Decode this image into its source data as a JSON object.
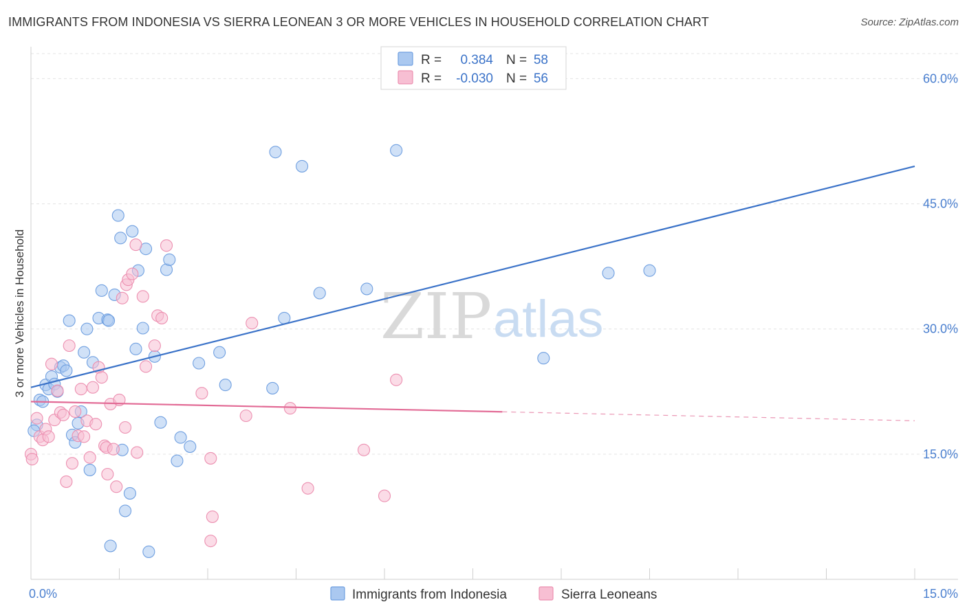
{
  "header": {
    "title": "IMMIGRANTS FROM INDONESIA VS SIERRA LEONEAN 3 OR MORE VEHICLES IN HOUSEHOLD CORRELATION CHART",
    "source": "Source: ZipAtlas.com"
  },
  "watermark": {
    "zip": "ZIP",
    "atlas": "atlas"
  },
  "stats": [
    {
      "r_label": "R =",
      "r_value": "0.384",
      "n_label": "N =",
      "n_value": "58",
      "color": "#aac8f0",
      "stroke": "#6f9fe0"
    },
    {
      "r_label": "R =",
      "r_value": "-0.030",
      "n_label": "N =",
      "n_value": "56",
      "color": "#f7bfd3",
      "stroke": "#ec8fb0"
    }
  ],
  "chart_data": {
    "type": "scatter",
    "title": "IMMIGRANTS FROM INDONESIA VS SIERRA LEONEAN 3 OR MORE VEHICLES IN HOUSEHOLD CORRELATION CHART",
    "xlabel": "",
    "ylabel": "3 or more Vehicles in Household",
    "xlim": [
      0,
      15
    ],
    "ylim": [
      0,
      63
    ],
    "x_tick_labels": [
      "0.0%",
      "15.0%"
    ],
    "y_ticks": [
      15,
      30,
      45,
      60
    ],
    "y_tick_labels": [
      "15.0%",
      "30.0%",
      "45.0%",
      "60.0%"
    ],
    "grid": true,
    "legend_position": "bottom-center",
    "series": [
      {
        "name": "Immigrants from Indonesia",
        "color": "#aac8f0",
        "stroke": "#6f9fe0",
        "trend": {
          "x": [
            0,
            15
          ],
          "y": [
            23.0,
            49.5
          ],
          "color": "#3a72c8",
          "dashed_from": null
        },
        "points": [
          [
            0.1,
            18.5
          ],
          [
            0.15,
            21.5
          ],
          [
            0.2,
            21.3
          ],
          [
            0.25,
            23.3
          ],
          [
            0.3,
            22.8
          ],
          [
            0.35,
            24.3
          ],
          [
            0.4,
            23.4
          ],
          [
            0.45,
            22.5
          ],
          [
            0.5,
            25.4
          ],
          [
            0.55,
            25.6
          ],
          [
            0.6,
            25.0
          ],
          [
            0.65,
            31.0
          ],
          [
            0.7,
            17.3
          ],
          [
            0.75,
            16.4
          ],
          [
            0.8,
            18.7
          ],
          [
            0.85,
            20.1
          ],
          [
            0.9,
            27.2
          ],
          [
            0.95,
            30.0
          ],
          [
            1.0,
            13.1
          ],
          [
            1.05,
            26.0
          ],
          [
            1.15,
            31.3
          ],
          [
            1.2,
            34.6
          ],
          [
            1.3,
            31.1
          ],
          [
            1.32,
            31.0
          ],
          [
            1.35,
            4.0
          ],
          [
            1.42,
            34.1
          ],
          [
            1.48,
            43.6
          ],
          [
            1.52,
            40.9
          ],
          [
            1.55,
            15.5
          ],
          [
            1.6,
            8.2
          ],
          [
            1.68,
            10.3
          ],
          [
            1.72,
            41.7
          ],
          [
            1.78,
            27.6
          ],
          [
            1.82,
            37.0
          ],
          [
            1.9,
            30.1
          ],
          [
            1.95,
            39.6
          ],
          [
            2.0,
            3.3
          ],
          [
            2.1,
            26.7
          ],
          [
            2.2,
            18.8
          ],
          [
            2.3,
            37.1
          ],
          [
            2.35,
            38.3
          ],
          [
            2.48,
            14.2
          ],
          [
            2.54,
            17.0
          ],
          [
            2.7,
            15.9
          ],
          [
            2.85,
            25.9
          ],
          [
            3.2,
            27.2
          ],
          [
            3.3,
            23.3
          ],
          [
            4.1,
            22.9
          ],
          [
            4.15,
            51.2
          ],
          [
            4.3,
            31.3
          ],
          [
            4.6,
            49.5
          ],
          [
            4.9,
            34.3
          ],
          [
            5.7,
            34.8
          ],
          [
            6.2,
            51.4
          ],
          [
            8.7,
            26.5
          ],
          [
            9.8,
            36.7
          ],
          [
            10.5,
            37.0
          ],
          [
            0.05,
            17.8
          ]
        ]
      },
      {
        "name": "Sierra Leoneans",
        "color": "#f7bfd3",
        "stroke": "#ec8fb0",
        "trend": {
          "x": [
            0,
            15
          ],
          "y": [
            21.3,
            19.0
          ],
          "color": "#e26a95",
          "dashed_from": 8.0
        },
        "points": [
          [
            0.0,
            15.0
          ],
          [
            0.02,
            14.4
          ],
          [
            0.1,
            19.3
          ],
          [
            0.15,
            17.1
          ],
          [
            0.2,
            16.7
          ],
          [
            0.25,
            18.0
          ],
          [
            0.3,
            17.1
          ],
          [
            0.35,
            25.8
          ],
          [
            0.4,
            19.1
          ],
          [
            0.45,
            22.6
          ],
          [
            0.5,
            20.0
          ],
          [
            0.55,
            19.7
          ],
          [
            0.6,
            11.7
          ],
          [
            0.65,
            28.0
          ],
          [
            0.7,
            13.9
          ],
          [
            0.75,
            20.1
          ],
          [
            0.8,
            17.2
          ],
          [
            0.85,
            22.8
          ],
          [
            0.9,
            17.1
          ],
          [
            0.95,
            19.0
          ],
          [
            1.0,
            14.6
          ],
          [
            1.05,
            23.0
          ],
          [
            1.1,
            18.6
          ],
          [
            1.15,
            25.4
          ],
          [
            1.2,
            24.2
          ],
          [
            1.25,
            16.0
          ],
          [
            1.28,
            15.8
          ],
          [
            1.3,
            12.6
          ],
          [
            1.35,
            21.0
          ],
          [
            1.4,
            15.6
          ],
          [
            1.45,
            11.1
          ],
          [
            1.5,
            21.5
          ],
          [
            1.55,
            33.7
          ],
          [
            1.6,
            18.2
          ],
          [
            1.62,
            35.3
          ],
          [
            1.65,
            35.9
          ],
          [
            1.72,
            36.6
          ],
          [
            1.78,
            40.1
          ],
          [
            1.8,
            15.2
          ],
          [
            1.9,
            33.9
          ],
          [
            1.95,
            25.5
          ],
          [
            2.1,
            28.0
          ],
          [
            2.15,
            31.6
          ],
          [
            2.22,
            31.3
          ],
          [
            2.3,
            40.0
          ],
          [
            2.9,
            22.3
          ],
          [
            3.05,
            14.5
          ],
          [
            3.08,
            7.5
          ],
          [
            3.05,
            4.6
          ],
          [
            3.65,
            19.6
          ],
          [
            3.75,
            30.7
          ],
          [
            4.4,
            20.5
          ],
          [
            4.7,
            10.9
          ],
          [
            5.65,
            15.5
          ],
          [
            6.0,
            10.0
          ],
          [
            6.2,
            23.9
          ]
        ]
      }
    ]
  }
}
